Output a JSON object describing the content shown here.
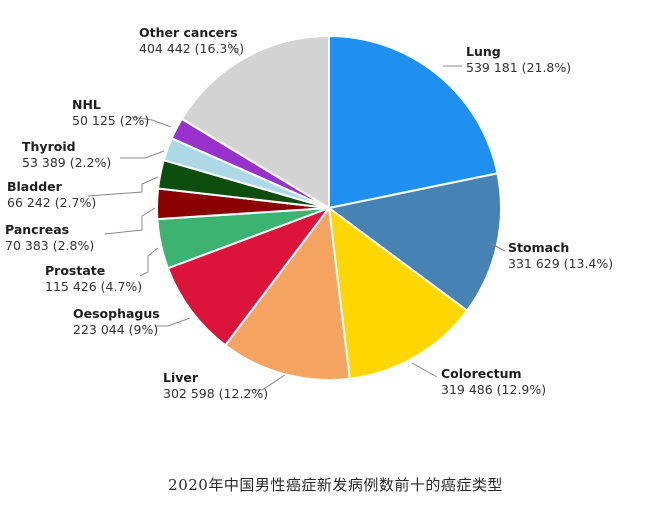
{
  "caption": "2020年中国男性癌症新发病例数前十的癌症类型",
  "chart_data": {
    "type": "pie",
    "title": "",
    "start": "12 o'clock",
    "direction": "clockwise",
    "slices": [
      {
        "name": "Lung",
        "value": 539181,
        "percent": 21.8,
        "label": "539 181 (21.8%)",
        "color": "#1f90f0"
      },
      {
        "name": "Stomach",
        "value": 331629,
        "percent": 13.4,
        "label": "331 629 (13.4%)",
        "color": "#4682b4"
      },
      {
        "name": "Colorectum",
        "value": 319486,
        "percent": 12.9,
        "label": "319 486 (12.9%)",
        "color": "#ffd700"
      },
      {
        "name": "Liver",
        "value": 302598,
        "percent": 12.2,
        "label": "302 598 (12.2%)",
        "color": "#f4a460"
      },
      {
        "name": "Oesophagus",
        "value": 223044,
        "percent": 9,
        "label": "223 044 (9%)",
        "color": "#dc143c"
      },
      {
        "name": "Prostate",
        "value": 115426,
        "percent": 4.7,
        "label": "115 426 (4.7%)",
        "color": "#3cb371"
      },
      {
        "name": "Pancreas",
        "value": 70383,
        "percent": 2.8,
        "label": "70 383 (2.8%)",
        "color": "#8b0000"
      },
      {
        "name": "Bladder",
        "value": 66242,
        "percent": 2.7,
        "label": "66 242 (2.7%)",
        "color": "#0d4d0d"
      },
      {
        "name": "Thyroid",
        "value": 53389,
        "percent": 2.2,
        "label": "53 389 (2.2%)",
        "color": "#add8e6"
      },
      {
        "name": "NHL",
        "value": 50125,
        "percent": 2,
        "label": "50 125 (2%)",
        "color": "#9932cc"
      },
      {
        "name": "Other cancers",
        "value": 404442,
        "percent": 16.3,
        "label": "404 442 (16.3%)",
        "color": "#d3d3d3"
      }
    ]
  }
}
